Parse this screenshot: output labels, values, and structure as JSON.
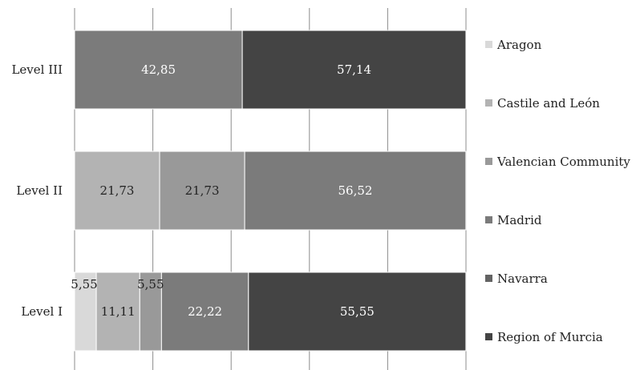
{
  "chart_data": {
    "type": "bar",
    "orientation": "horizontal",
    "stacked": true,
    "percent": true,
    "categories": [
      "Level III",
      "Level II",
      "Level I"
    ],
    "series": [
      {
        "name": "Aragon",
        "color": "#d9d9d9",
        "values": [
          null,
          null,
          5.55
        ],
        "labels": [
          "",
          "",
          "5,55"
        ]
      },
      {
        "name": "Castile and León",
        "color": "#b3b3b3",
        "values": [
          null,
          21.73,
          11.11
        ],
        "labels": [
          "",
          "21,73",
          "11,11"
        ]
      },
      {
        "name": "Valencian Community",
        "color": "#999999",
        "values": [
          null,
          21.73,
          5.55
        ],
        "labels": [
          "",
          "21,73",
          "5,55"
        ]
      },
      {
        "name": "Madrid",
        "color": "#7b7b7b",
        "values": [
          42.85,
          56.52,
          22.22
        ],
        "labels": [
          "42,85",
          "56,52",
          "22,22"
        ]
      },
      {
        "name": "Navarra",
        "color": "#636363",
        "values": [
          null,
          null,
          null
        ],
        "labels": [
          "",
          "",
          ""
        ]
      },
      {
        "name": "Region of Murcia",
        "color": "#444444",
        "values": [
          57.14,
          null,
          55.55
        ],
        "labels": [
          "57,14",
          "",
          "55,55"
        ]
      }
    ],
    "xlim": [
      0,
      100
    ],
    "gridlines": "vertical",
    "legend": "right"
  }
}
